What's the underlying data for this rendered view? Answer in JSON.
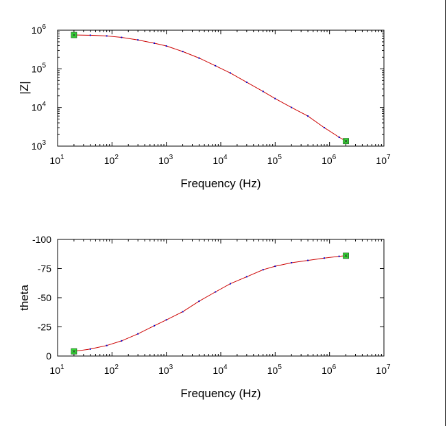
{
  "chart_data": [
    {
      "type": "line",
      "xlabel": "Frequency (Hz)",
      "ylabel": "|Z|",
      "xscale": "log",
      "yscale": "log",
      "xlim": [
        10,
        10000000
      ],
      "ylim": [
        1000,
        1000000
      ],
      "x_ticks": [
        {
          "base": "10",
          "exp": "1",
          "value": 10
        },
        {
          "base": "10",
          "exp": "2",
          "value": 100
        },
        {
          "base": "10",
          "exp": "3",
          "value": 1000
        },
        {
          "base": "10",
          "exp": "4",
          "value": 10000
        },
        {
          "base": "10",
          "exp": "5",
          "value": 100000
        },
        {
          "base": "10",
          "exp": "6",
          "value": 1000000
        },
        {
          "base": "10",
          "exp": "7",
          "value": 10000000
        }
      ],
      "y_ticks": [
        {
          "base": "10",
          "exp": "3",
          "value": 1000
        },
        {
          "base": "10",
          "exp": "4",
          "value": 10000
        },
        {
          "base": "10",
          "exp": "5",
          "value": 100000
        },
        {
          "base": "10",
          "exp": "6",
          "value": 1000000
        }
      ],
      "grid": false,
      "series": [
        {
          "color": "#cc0000",
          "marker_color": "#0000cc",
          "x": [
            20,
            40,
            80,
            150,
            300,
            600,
            1000,
            2000,
            4000,
            8000,
            15000,
            30000,
            60000,
            100000,
            200000,
            400000,
            800000,
            1500000,
            2000000
          ],
          "y": [
            750000,
            740000,
            710000,
            650000,
            560000,
            460000,
            390000,
            280000,
            190000,
            120000,
            78000,
            45000,
            26000,
            17000,
            10000,
            6000,
            3000,
            1700,
            1350
          ]
        }
      ],
      "endpoints": [
        {
          "x": 20,
          "y": 750000,
          "color": "#33dd33"
        },
        {
          "x": 2000000,
          "y": 1350,
          "color": "#33dd33"
        }
      ]
    },
    {
      "type": "line",
      "xlabel": "Frequency (Hz)",
      "ylabel": "theta",
      "xscale": "log",
      "xlim": [
        10,
        10000000
      ],
      "ylim": [
        0,
        -100
      ],
      "x_ticks": [
        {
          "base": "10",
          "exp": "1",
          "value": 10
        },
        {
          "base": "10",
          "exp": "2",
          "value": 100
        },
        {
          "base": "10",
          "exp": "3",
          "value": 1000
        },
        {
          "base": "10",
          "exp": "4",
          "value": 10000
        },
        {
          "base": "10",
          "exp": "5",
          "value": 100000
        },
        {
          "base": "10",
          "exp": "6",
          "value": 1000000
        },
        {
          "base": "10",
          "exp": "7",
          "value": 10000000
        }
      ],
      "y_ticks": [
        {
          "label": "0",
          "value": 0
        },
        {
          "label": "-25",
          "value": -25
        },
        {
          "label": "-50",
          "value": -50
        },
        {
          "label": "-75",
          "value": -75
        },
        {
          "label": "-100",
          "value": -100
        }
      ],
      "grid": false,
      "series": [
        {
          "color": "#cc0000",
          "marker_color": "#0000cc",
          "x": [
            20,
            40,
            80,
            150,
            300,
            600,
            1000,
            2000,
            4000,
            8000,
            15000,
            30000,
            60000,
            100000,
            200000,
            400000,
            800000,
            1500000,
            2000000
          ],
          "y": [
            -4,
            -6,
            -9,
            -13,
            -19,
            -26,
            -31,
            -38,
            -47,
            -55,
            -62,
            -68,
            -74,
            -77,
            -80,
            -82,
            -84,
            -85.5,
            -86
          ]
        }
      ],
      "endpoints": [
        {
          "x": 20,
          "y": -4,
          "color": "#33dd33"
        },
        {
          "x": 2000000,
          "y": -86,
          "color": "#33dd33"
        }
      ]
    }
  ]
}
